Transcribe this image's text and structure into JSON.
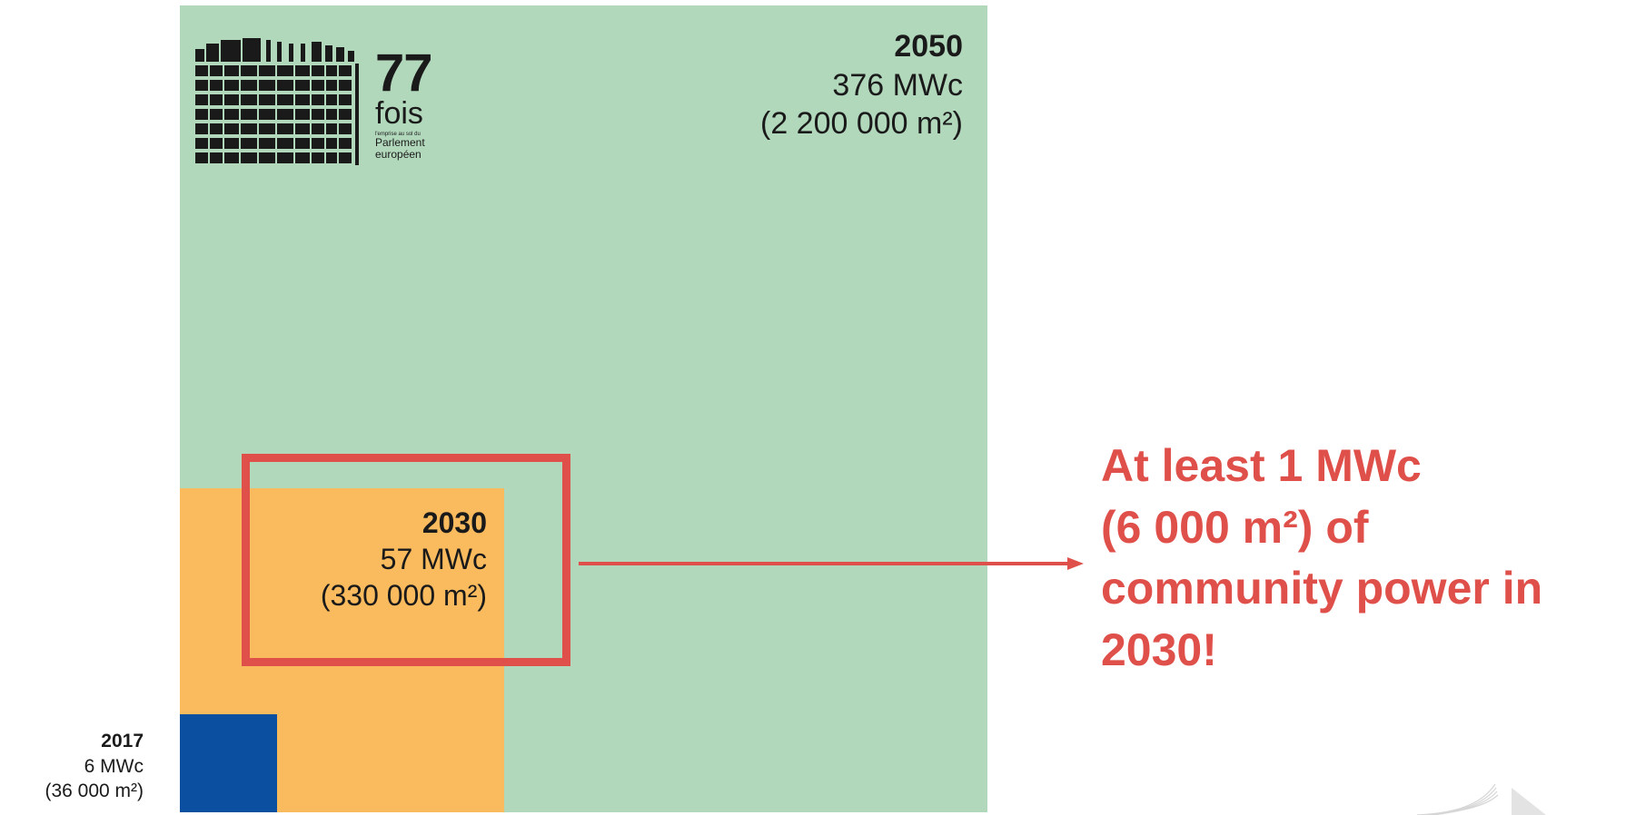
{
  "colors": {
    "sq_2050": "#b2d8bc",
    "sq_2030": "#f9bb5e",
    "sq_2017": "#0b4fa0",
    "accent": "#e0504a"
  },
  "squares": {
    "y2050": {
      "year": "2050",
      "power": "376 MWc",
      "area": "(2 200 000 m²)"
    },
    "y2030": {
      "year": "2030",
      "power": "57 MWc",
      "area": "(330 000 m²)"
    },
    "y2017": {
      "year": "2017",
      "power": "6 MWc",
      "area": "(36 000 m²)"
    }
  },
  "logo": {
    "icon": "parliament-building-icon",
    "number": "77",
    "word": "fois",
    "small": "l'emprise au sol du",
    "line1": "Parlement",
    "line2": "européen"
  },
  "callout": {
    "line1": "At least 1 MWc",
    "line2": "(6 000 m²) of",
    "line3": "community power in",
    "line4": "2030!"
  }
}
